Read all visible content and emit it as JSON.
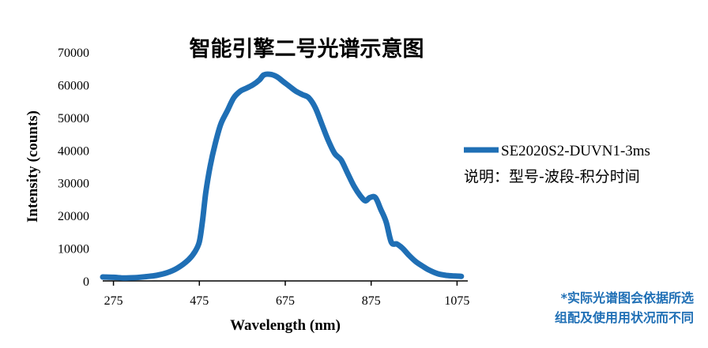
{
  "chart_data": {
    "type": "line",
    "title": "智能引擎二号光谱示意图",
    "xlabel": "Wavelength (nm)",
    "ylabel": "Intensity (counts)",
    "xlim": [
      250,
      1100
    ],
    "ylim": [
      0,
      70000
    ],
    "x_ticks": [
      275,
      475,
      675,
      875,
      1075
    ],
    "y_ticks": [
      0,
      10000,
      20000,
      30000,
      40000,
      50000,
      60000,
      70000
    ],
    "grid": false,
    "legend_position": "right",
    "series": [
      {
        "name": "SE2020S2-DUVN1-3ms",
        "color": "#1f6fb5",
        "points": [
          [
            250,
            1200
          ],
          [
            275,
            1100
          ],
          [
            300,
            900
          ],
          [
            325,
            1000
          ],
          [
            350,
            1300
          ],
          [
            375,
            1700
          ],
          [
            400,
            2500
          ],
          [
            425,
            4000
          ],
          [
            450,
            6500
          ],
          [
            465,
            9000
          ],
          [
            475,
            12000
          ],
          [
            482,
            18000
          ],
          [
            490,
            27000
          ],
          [
            500,
            35000
          ],
          [
            512,
            42000
          ],
          [
            525,
            48000
          ],
          [
            540,
            52000
          ],
          [
            555,
            56000
          ],
          [
            570,
            58000
          ],
          [
            585,
            59000
          ],
          [
            600,
            60000
          ],
          [
            615,
            61500
          ],
          [
            625,
            63000
          ],
          [
            640,
            63200
          ],
          [
            655,
            62500
          ],
          [
            670,
            61000
          ],
          [
            685,
            59500
          ],
          [
            700,
            58000
          ],
          [
            715,
            57000
          ],
          [
            730,
            56000
          ],
          [
            745,
            53000
          ],
          [
            760,
            48000
          ],
          [
            775,
            43000
          ],
          [
            790,
            39000
          ],
          [
            805,
            37000
          ],
          [
            820,
            33000
          ],
          [
            835,
            29000
          ],
          [
            850,
            26000
          ],
          [
            862,
            24500
          ],
          [
            872,
            25500
          ],
          [
            885,
            25500
          ],
          [
            897,
            22000
          ],
          [
            910,
            18000
          ],
          [
            922,
            11800
          ],
          [
            935,
            11300
          ],
          [
            948,
            10000
          ],
          [
            962,
            8000
          ],
          [
            978,
            6000
          ],
          [
            995,
            4500
          ],
          [
            1010,
            3300
          ],
          [
            1030,
            2200
          ],
          [
            1050,
            1700
          ],
          [
            1070,
            1500
          ],
          [
            1085,
            1400
          ]
        ]
      }
    ],
    "legend_note": "说明：型号-波段-积分时间"
  },
  "footnote": {
    "line1": "*实际光谱图会依据所选",
    "line2": "组配及使用用状况而不同"
  }
}
